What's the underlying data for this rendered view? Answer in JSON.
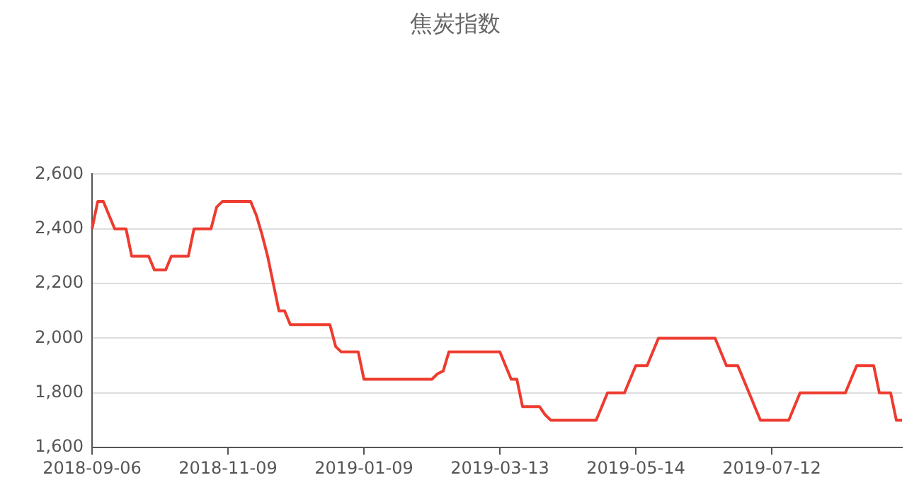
{
  "chart_data": {
    "type": "line",
    "title": "焦炭指数",
    "categories": [
      "2018-09-06",
      null,
      null,
      null,
      null,
      null,
      null,
      null,
      null,
      null,
      null,
      null,
      null,
      null,
      null,
      null,
      null,
      null,
      null,
      null,
      null,
      null,
      null,
      null,
      "2018-11-09",
      null,
      null,
      null,
      null,
      null,
      null,
      null,
      null,
      null,
      null,
      null,
      null,
      null,
      null,
      null,
      null,
      null,
      null,
      null,
      null,
      null,
      null,
      null,
      "2019-01-09",
      null,
      null,
      null,
      null,
      null,
      null,
      null,
      null,
      null,
      null,
      null,
      null,
      null,
      null,
      null,
      null,
      null,
      null,
      null,
      null,
      null,
      null,
      null,
      "2019-03-13",
      null,
      null,
      null,
      null,
      null,
      null,
      null,
      null,
      null,
      null,
      null,
      null,
      null,
      null,
      null,
      null,
      null,
      null,
      null,
      null,
      null,
      null,
      null,
      "2019-05-14",
      null,
      null,
      null,
      null,
      null,
      null,
      null,
      null,
      null,
      null,
      null,
      null,
      null,
      null,
      null,
      null,
      null,
      null,
      null,
      null,
      null,
      null,
      null,
      "2019-07-12",
      null,
      null,
      null,
      null,
      null,
      null,
      null,
      null,
      null,
      null,
      null,
      null,
      null,
      null,
      null,
      null,
      null,
      null,
      null,
      null,
      null,
      null,
      null
    ],
    "series": [
      {
        "color": "#ee3b2f",
        "values": [
          2400,
          2500,
          2500,
          2450,
          2400,
          2400,
          2400,
          2300,
          2300,
          2300,
          2300,
          2250,
          2250,
          2250,
          2300,
          2300,
          2300,
          2300,
          2400,
          2400,
          2400,
          2400,
          2480,
          2500,
          2500,
          2500,
          2500,
          2500,
          2500,
          2450,
          2380,
          2300,
          2200,
          2100,
          2100,
          2050,
          2050,
          2050,
          2050,
          2050,
          2050,
          2050,
          2050,
          1970,
          1950,
          1950,
          1950,
          1950,
          1850,
          1850,
          1850,
          1850,
          1850,
          1850,
          1850,
          1850,
          1850,
          1850,
          1850,
          1850,
          1850,
          1870,
          1880,
          1950,
          1950,
          1950,
          1950,
          1950,
          1950,
          1950,
          1950,
          1950,
          1950,
          1900,
          1850,
          1850,
          1750,
          1750,
          1750,
          1750,
          1720,
          1700,
          1700,
          1700,
          1700,
          1700,
          1700,
          1700,
          1700,
          1700,
          1750,
          1800,
          1800,
          1800,
          1800,
          1850,
          1900,
          1900,
          1900,
          1950,
          2000,
          2000,
          2000,
          2000,
          2000,
          2000,
          2000,
          2000,
          2000,
          2000,
          2000,
          1950,
          1900,
          1900,
          1900,
          1850,
          1800,
          1750,
          1700,
          1700,
          1700,
          1700,
          1700,
          1700,
          1750,
          1800,
          1800,
          1800,
          1800,
          1800,
          1800,
          1800,
          1800,
          1800,
          1850,
          1900,
          1900,
          1900,
          1900,
          1800,
          1800,
          1800,
          1700,
          1700
        ]
      }
    ],
    "ylim": [
      1600,
      2600
    ],
    "yticks": [
      {
        "value": 1600,
        "label": "1,600"
      },
      {
        "value": 1800,
        "label": "1,800"
      },
      {
        "value": 2000,
        "label": "2,000"
      },
      {
        "value": 2200,
        "label": "2,200"
      },
      {
        "value": 2400,
        "label": "2,400"
      },
      {
        "value": 2600,
        "label": "2,600"
      }
    ],
    "grid": "y",
    "line_style": "solid"
  }
}
